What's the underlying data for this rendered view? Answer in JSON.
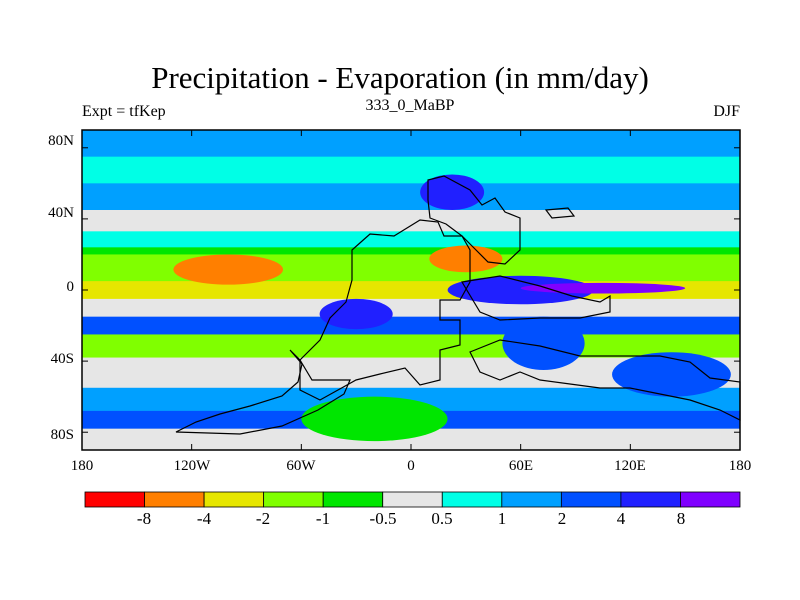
{
  "title": "Precipitation - Evaporation (in mm/day)",
  "subtitle": "333_0_MaBP",
  "left_string": "Expt = tfKep",
  "right_string": "DJF",
  "lat_ticks": [
    "80N",
    "40N",
    "0",
    "40S",
    "80S"
  ],
  "lon_ticks": [
    "180",
    "120W",
    "60W",
    "0",
    "60E",
    "120E",
    "180"
  ],
  "colorbar": {
    "colors": [
      "#ff0000",
      "#ff7f00",
      "#e6e600",
      "#80ff00",
      "#00e600",
      "#e6e6e6",
      "#00ffe6",
      "#00a0ff",
      "#0050ff",
      "#2020ff",
      "#8000ff"
    ],
    "labels": [
      "-8",
      "-4",
      "-2",
      "-1",
      "-0.5",
      "0.5",
      "1",
      "2",
      "4",
      "8"
    ]
  },
  "chart_data": {
    "type": "heatmap",
    "title": "Precipitation - Evaporation (in mm/day)",
    "subtitle": "333_0_MaBP",
    "season": "DJF",
    "experiment": "tfKep",
    "x_range": [
      -180,
      180
    ],
    "y_range": [
      -90,
      90
    ],
    "xticks": [
      -180,
      -120,
      -60,
      0,
      60,
      120,
      180
    ],
    "yticks": [
      80,
      40,
      0,
      -40,
      -80
    ],
    "levels": [
      -8,
      -4,
      -2,
      -1,
      -0.5,
      0.5,
      1,
      2,
      4,
      8
    ],
    "bands": [
      {
        "lat": [
          75,
          90
        ],
        "dominant_class": 7
      },
      {
        "lat": [
          60,
          75
        ],
        "dominant_class": 6
      },
      {
        "lat": [
          45,
          60
        ],
        "dominant_class": 7
      },
      {
        "lat": [
          33,
          45
        ],
        "dominant_class": 5
      },
      {
        "lat": [
          24,
          33
        ],
        "dominant_class": 6
      },
      {
        "lat": [
          20,
          24
        ],
        "dominant_class": 4
      },
      {
        "lat": [
          5,
          20
        ],
        "dominant_class": 3
      },
      {
        "lat": [
          -5,
          5
        ],
        "dominant_class": 2
      },
      {
        "lat": [
          -15,
          -5
        ],
        "dominant_class": 5
      },
      {
        "lat": [
          -25,
          -15
        ],
        "dominant_class": 8
      },
      {
        "lat": [
          -38,
          -25
        ],
        "dominant_class": 3
      },
      {
        "lat": [
          -55,
          -38
        ],
        "dominant_class": 5
      },
      {
        "lat": [
          -68,
          -55
        ],
        "dominant_class": 7
      },
      {
        "lat": [
          -78,
          -68
        ],
        "dominant_class": 8
      },
      {
        "lat": [
          -90,
          -78
        ],
        "dominant_class": 5
      }
    ],
    "features": [
      {
        "lon": [
          -130,
          -70
        ],
        "lat": [
          3,
          20
        ],
        "class": 1
      },
      {
        "lon": [
          -50,
          -10
        ],
        "lat": [
          -22,
          -5
        ],
        "class": 9
      },
      {
        "lon": [
          20,
          100
        ],
        "lat": [
          -8,
          8
        ],
        "class": 9
      },
      {
        "lon": [
          60,
          150
        ],
        "lat": [
          -2,
          4
        ],
        "class": 10
      },
      {
        "lon": [
          5,
          40
        ],
        "lat": [
          45,
          65
        ],
        "class": 9
      },
      {
        "lon": [
          10,
          50
        ],
        "lat": [
          10,
          25
        ],
        "class": 1
      },
      {
        "lon": [
          50,
          95
        ],
        "lat": [
          -45,
          -15
        ],
        "class": 8
      },
      {
        "lon": [
          110,
          175
        ],
        "lat": [
          -60,
          -35
        ],
        "class": 8
      },
      {
        "lon": [
          -60,
          20
        ],
        "lat": [
          -85,
          -60
        ],
        "class": 4
      }
    ]
  }
}
